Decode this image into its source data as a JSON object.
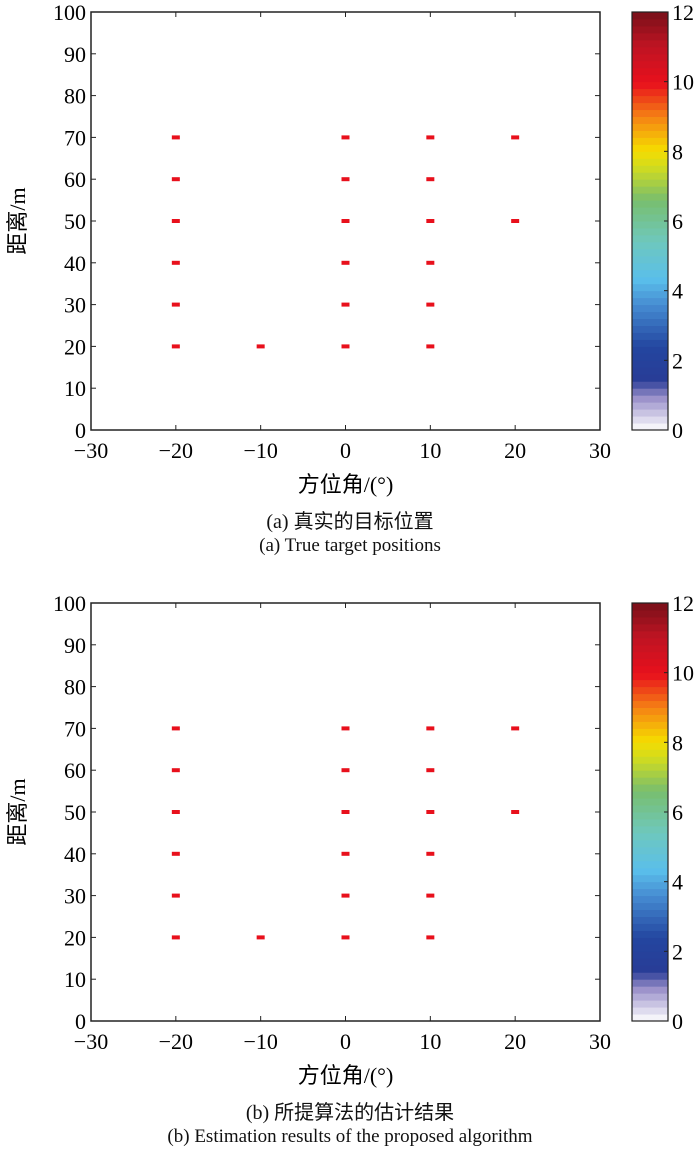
{
  "chart_data": [
    {
      "type": "scatter",
      "caption_cn": "(a) 真实的目标位置",
      "caption_en": "(a) True target positions",
      "xlabel": "方位角/(°)",
      "ylabel": "距离/m",
      "xlim": [
        -30,
        30
      ],
      "ylim": [
        0,
        100
      ],
      "xticks": [
        -30,
        -20,
        -10,
        0,
        10,
        20,
        30
      ],
      "yticks": [
        0,
        10,
        20,
        30,
        40,
        50,
        60,
        70,
        80,
        90,
        100
      ],
      "colorbar": {
        "range": [
          0,
          12
        ],
        "ticks": [
          0,
          2,
          4,
          6,
          8,
          10,
          12
        ]
      },
      "marker_color": "#e8101c",
      "points": [
        [
          -20,
          20
        ],
        [
          -20,
          30
        ],
        [
          -20,
          40
        ],
        [
          -20,
          50
        ],
        [
          -20,
          60
        ],
        [
          -20,
          70
        ],
        [
          -10,
          20
        ],
        [
          0,
          20
        ],
        [
          0,
          30
        ],
        [
          0,
          40
        ],
        [
          0,
          50
        ],
        [
          0,
          60
        ],
        [
          0,
          70
        ],
        [
          10,
          20
        ],
        [
          10,
          30
        ],
        [
          10,
          40
        ],
        [
          10,
          50
        ],
        [
          10,
          60
        ],
        [
          10,
          70
        ],
        [
          20,
          50
        ],
        [
          20,
          70
        ]
      ]
    },
    {
      "type": "scatter",
      "caption_cn": "(b) 所提算法的估计结果",
      "caption_en": "(b) Estimation results of the proposed algorithm",
      "xlabel": "方位角/(°)",
      "ylabel": "距离/m",
      "xlim": [
        -30,
        30
      ],
      "ylim": [
        0,
        100
      ],
      "xticks": [
        -30,
        -20,
        -10,
        0,
        10,
        20,
        30
      ],
      "yticks": [
        0,
        10,
        20,
        30,
        40,
        50,
        60,
        70,
        80,
        90,
        100
      ],
      "colorbar": {
        "range": [
          0,
          12
        ],
        "ticks": [
          0,
          2,
          4,
          6,
          8,
          10,
          12
        ]
      },
      "marker_color": "#e8101c",
      "points": [
        [
          -20,
          20
        ],
        [
          -20,
          30
        ],
        [
          -20,
          40
        ],
        [
          -20,
          50
        ],
        [
          -20,
          60
        ],
        [
          -20,
          70
        ],
        [
          -10,
          20
        ],
        [
          0,
          20
        ],
        [
          0,
          30
        ],
        [
          0,
          40
        ],
        [
          0,
          50
        ],
        [
          0,
          60
        ],
        [
          0,
          70
        ],
        [
          10,
          20
        ],
        [
          10,
          30
        ],
        [
          10,
          40
        ],
        [
          10,
          50
        ],
        [
          10,
          60
        ],
        [
          10,
          70
        ],
        [
          20,
          50
        ],
        [
          20,
          70
        ]
      ]
    }
  ]
}
